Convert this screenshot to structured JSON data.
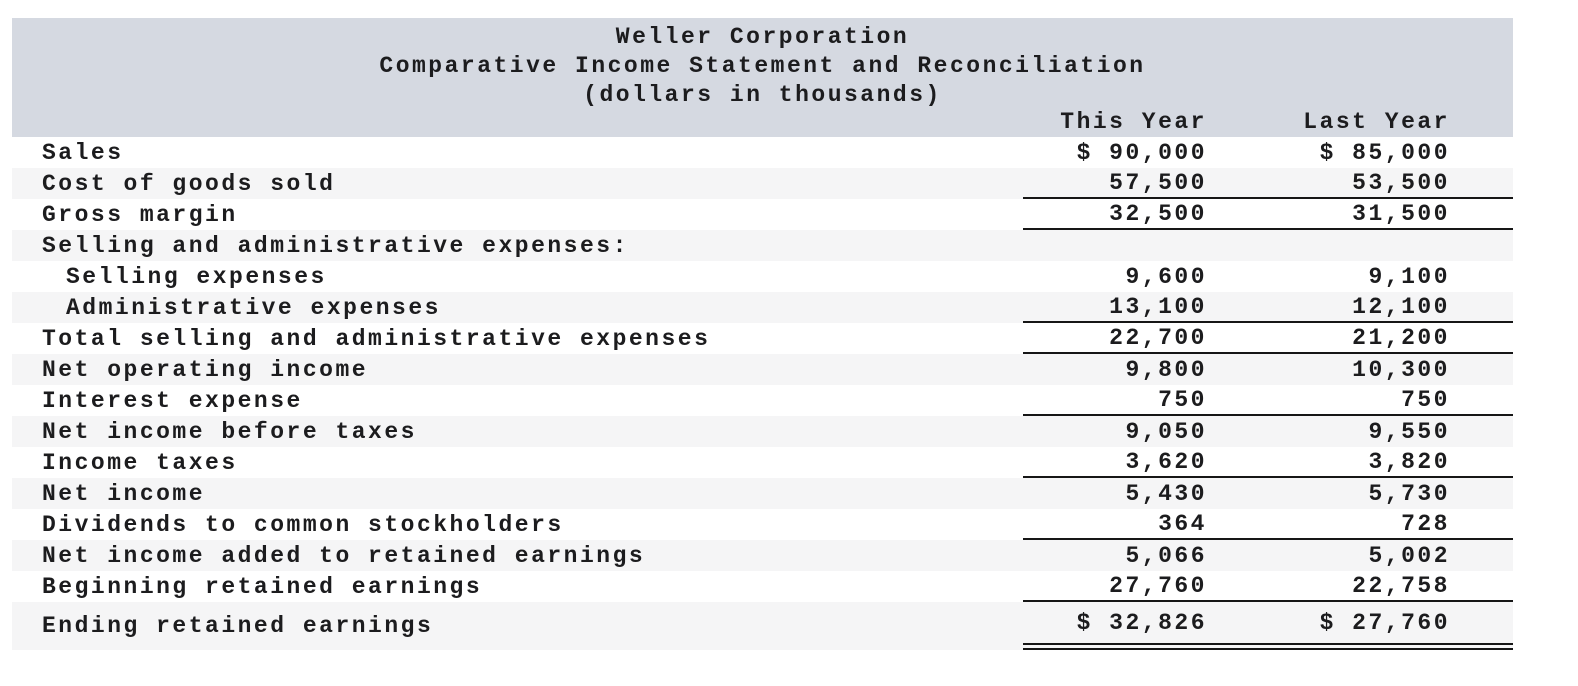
{
  "title": {
    "company": "Weller Corporation",
    "statement": "Comparative Income Statement and Reconciliation",
    "units": "(dollars in thousands)"
  },
  "columns": {
    "this_year": "This Year",
    "last_year": "Last Year"
  },
  "colors": {
    "header_bg": "#d5d9e1",
    "stripe_bg": "#f5f5f6",
    "rule": "#161616",
    "text": "#1c1c1e"
  },
  "rows": [
    {
      "label": "Sales",
      "this_year": "$ 90,000",
      "last_year": "$ 85,000",
      "indent": false,
      "shaded": false,
      "rule": "none",
      "tall": false
    },
    {
      "label": "Cost of goods sold",
      "this_year": "57,500",
      "last_year": "53,500",
      "indent": false,
      "shaded": true,
      "rule": "single",
      "tall": false
    },
    {
      "label": "Gross margin",
      "this_year": "32,500",
      "last_year": "31,500",
      "indent": false,
      "shaded": false,
      "rule": "single",
      "tall": false
    },
    {
      "label": "Selling and administrative expenses:",
      "this_year": "",
      "last_year": "",
      "indent": false,
      "shaded": true,
      "rule": "none",
      "tall": false
    },
    {
      "label": "Selling expenses",
      "this_year": "9,600",
      "last_year": "9,100",
      "indent": true,
      "shaded": false,
      "rule": "none",
      "tall": false
    },
    {
      "label": "Administrative expenses",
      "this_year": "13,100",
      "last_year": "12,100",
      "indent": true,
      "shaded": true,
      "rule": "single",
      "tall": false
    },
    {
      "label": "Total selling and administrative expenses",
      "this_year": "22,700",
      "last_year": "21,200",
      "indent": false,
      "shaded": false,
      "rule": "single",
      "tall": false
    },
    {
      "label": "Net operating income",
      "this_year": "9,800",
      "last_year": "10,300",
      "indent": false,
      "shaded": true,
      "rule": "none",
      "tall": false
    },
    {
      "label": "Interest expense",
      "this_year": "750",
      "last_year": "750",
      "indent": false,
      "shaded": false,
      "rule": "single",
      "tall": false
    },
    {
      "label": "Net income before taxes",
      "this_year": "9,050",
      "last_year": "9,550",
      "indent": false,
      "shaded": true,
      "rule": "none",
      "tall": false
    },
    {
      "label": "Income taxes",
      "this_year": "3,620",
      "last_year": "3,820",
      "indent": false,
      "shaded": false,
      "rule": "single",
      "tall": false
    },
    {
      "label": "Net income",
      "this_year": "5,430",
      "last_year": "5,730",
      "indent": false,
      "shaded": true,
      "rule": "none",
      "tall": false
    },
    {
      "label": "Dividends to common stockholders",
      "this_year": "364",
      "last_year": "728",
      "indent": false,
      "shaded": false,
      "rule": "single",
      "tall": false
    },
    {
      "label": "Net income added to retained earnings",
      "this_year": "5,066",
      "last_year": "5,002",
      "indent": false,
      "shaded": true,
      "rule": "none",
      "tall": false
    },
    {
      "label": "Beginning retained earnings",
      "this_year": "27,760",
      "last_year": "22,758",
      "indent": false,
      "shaded": false,
      "rule": "single",
      "tall": false
    },
    {
      "label": "Ending retained earnings",
      "this_year": "$ 32,826",
      "last_year": "$ 27,760",
      "indent": false,
      "shaded": true,
      "rule": "double",
      "tall": true
    }
  ]
}
